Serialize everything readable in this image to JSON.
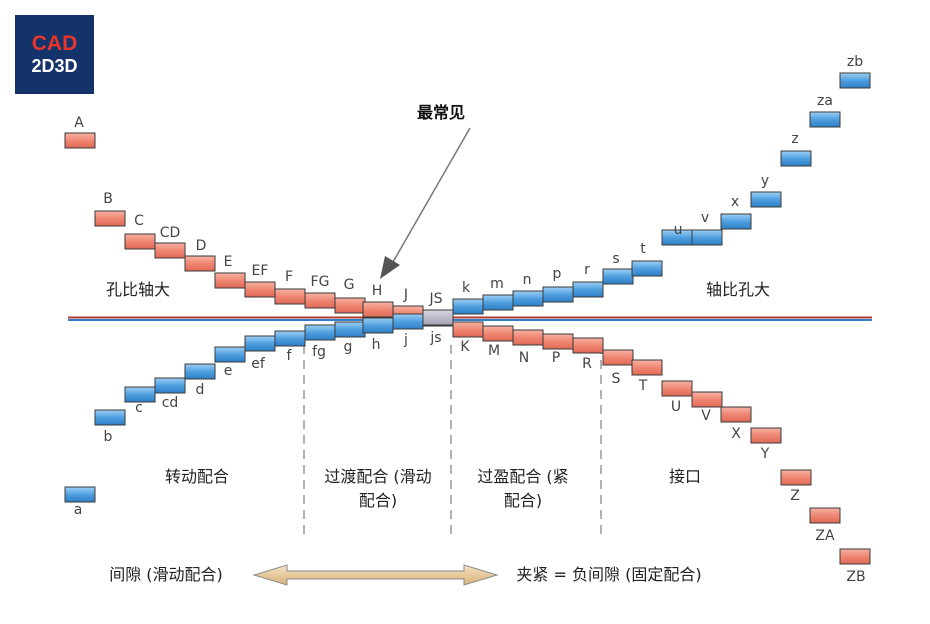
{
  "logo": {
    "line1": "CAD",
    "line2": "2D3D"
  },
  "callout": "最常见",
  "region_labels": {
    "upper_left": "孔比轴大",
    "upper_right": "轴比孔大",
    "zone1": "转动配合",
    "zone2_line1": "过渡配合 (滑动",
    "zone2_line2": "配合)",
    "zone3_line1": "过盈配合 (紧",
    "zone3_line2": "配合)",
    "zone4": "接口"
  },
  "bottom": {
    "left": "间隙 (滑动配合)",
    "right": "夹紧 = 负间隙 (固定配合)"
  },
  "colors": {
    "hole": "#f08a78",
    "shaft": "#4a9ce0",
    "neutral": "#b3b3c4",
    "arrow": "#e6c99a",
    "line_top": "#b03a2e",
    "line_bottom": "#2f7fc8"
  },
  "hole_deviations": [
    "A",
    "B",
    "C",
    "CD",
    "D",
    "E",
    "EF",
    "F",
    "FG",
    "G",
    "H",
    "J",
    "JS",
    "K",
    "M",
    "N",
    "P",
    "R",
    "S",
    "T",
    "U",
    "V",
    "X",
    "Y",
    "Z",
    "ZA",
    "ZB"
  ],
  "shaft_deviations": [
    "a",
    "b",
    "c",
    "cd",
    "d",
    "e",
    "ef",
    "f",
    "fg",
    "g",
    "h",
    "j",
    "js",
    "k",
    "m",
    "n",
    "p",
    "r",
    "s",
    "t",
    "u",
    "v",
    "x",
    "y",
    "z",
    "za",
    "zb"
  ]
}
